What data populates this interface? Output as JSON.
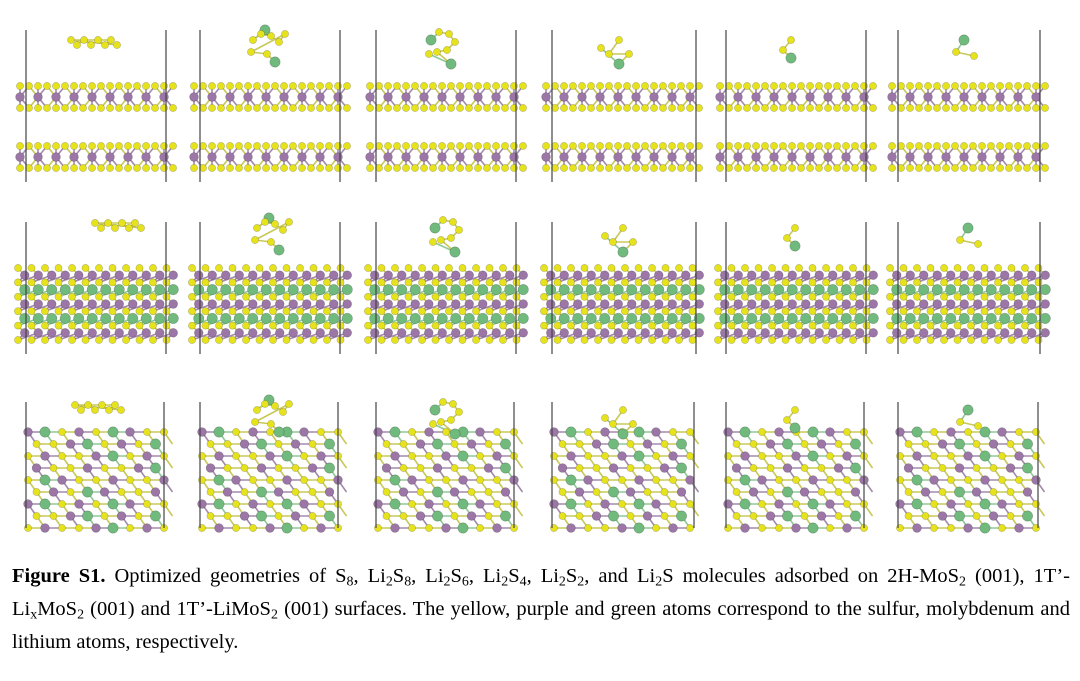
{
  "figure": {
    "rows": [
      {
        "name": "2H-MoS2 (001)",
        "panels": [
          "S8",
          "Li2S8",
          "Li2S6",
          "Li2S4",
          "Li2S2",
          "Li2S"
        ]
      },
      {
        "name": "1T'-LixMoS2 (001)",
        "panels": [
          "S8",
          "Li2S8",
          "Li2S6",
          "Li2S4",
          "Li2S2",
          "Li2S"
        ]
      },
      {
        "name": "1T'-LiMoS2 (001)",
        "panels": [
          "S8",
          "Li2S8",
          "Li2S6",
          "Li2S4",
          "Li2S2",
          "Li2S"
        ]
      }
    ],
    "colors": {
      "sulfur": "#e6e21c",
      "molybdenum": "#9b76a6",
      "lithium": "#6fba7c",
      "frame": "#444444"
    }
  },
  "caption": {
    "label": "Figure S1.",
    "t1": " Optimized geometries of S",
    "s8": "8",
    "t2": ", Li",
    "s2a": "2",
    "t3": "S",
    "s8b": "8",
    "t4": ", Li",
    "s2b": "2",
    "t5": "S",
    "s6": "6",
    "t6": ", Li",
    "s2c": "2",
    "t7": "S",
    "s4": "4",
    "t8": ", Li",
    "s2d": "2",
    "t9": "S",
    "s2e": "2",
    "t10": ", and Li",
    "s2f": "2",
    "t11": "S molecules adsorbed on 2H-MoS",
    "s2g": "2",
    "t12": " (001), 1T’-Li",
    "sx": "x",
    "t13": "MoS",
    "s2h": "2",
    "t14": " (001) and 1T’-LiMoS",
    "s2i": "2",
    "t15": " (001) surfaces. The yellow, purple and green atoms correspond to the sulfur, molybdenum and lithium atoms, respectively."
  }
}
